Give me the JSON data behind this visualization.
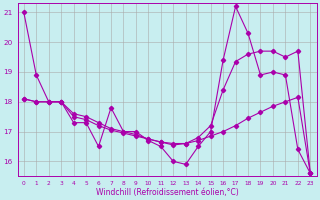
{
  "line1_x": [
    0,
    1,
    2,
    3,
    4,
    5,
    6,
    7,
    8,
    9,
    10,
    11,
    12,
    13,
    14,
    15,
    16,
    17,
    18,
    19,
    20,
    21,
    22,
    23
  ],
  "line1_y": [
    21.0,
    18.9,
    18.0,
    18.0,
    17.3,
    17.3,
    16.5,
    17.8,
    17.0,
    17.0,
    16.7,
    16.5,
    16.0,
    15.9,
    16.5,
    17.0,
    19.4,
    21.2,
    20.3,
    18.9,
    19.0,
    18.9,
    16.4,
    15.6
  ],
  "line2_x": [
    0,
    1,
    2,
    3,
    4,
    5,
    6,
    7,
    8,
    9,
    10,
    11,
    12,
    13,
    14,
    15,
    16,
    17,
    18,
    19,
    20,
    21,
    22,
    23
  ],
  "line2_y": [
    18.1,
    18.0,
    18.0,
    18.0,
    17.6,
    17.5,
    17.3,
    17.1,
    17.0,
    16.9,
    16.75,
    16.65,
    16.6,
    16.6,
    16.7,
    16.85,
    17.0,
    17.2,
    17.45,
    17.65,
    17.85,
    18.0,
    18.15,
    15.6
  ],
  "line3_x": [
    0,
    1,
    2,
    3,
    4,
    5,
    6,
    7,
    8,
    9,
    10,
    11,
    12,
    13,
    14,
    15,
    16,
    17,
    18,
    19,
    20,
    21,
    22,
    23
  ],
  "line3_y": [
    18.1,
    18.0,
    18.0,
    18.0,
    17.5,
    17.4,
    17.2,
    17.05,
    16.95,
    16.85,
    16.75,
    16.65,
    16.55,
    16.6,
    16.8,
    17.2,
    18.4,
    19.35,
    19.6,
    19.7,
    19.7,
    19.5,
    19.7,
    15.6
  ],
  "line_color": "#aa00aa",
  "bg_color": "#c8eef0",
  "grid_color": "#aaaaaa",
  "xlabel": "Windchill (Refroidissement éolien,°C)",
  "xlim": [
    -0.5,
    23.5
  ],
  "ylim": [
    15.5,
    21.3
  ],
  "yticks": [
    16,
    17,
    18,
    19,
    20,
    21
  ],
  "xticks": [
    0,
    1,
    2,
    3,
    4,
    5,
    6,
    7,
    8,
    9,
    10,
    11,
    12,
    13,
    14,
    15,
    16,
    17,
    18,
    19,
    20,
    21,
    22,
    23
  ]
}
